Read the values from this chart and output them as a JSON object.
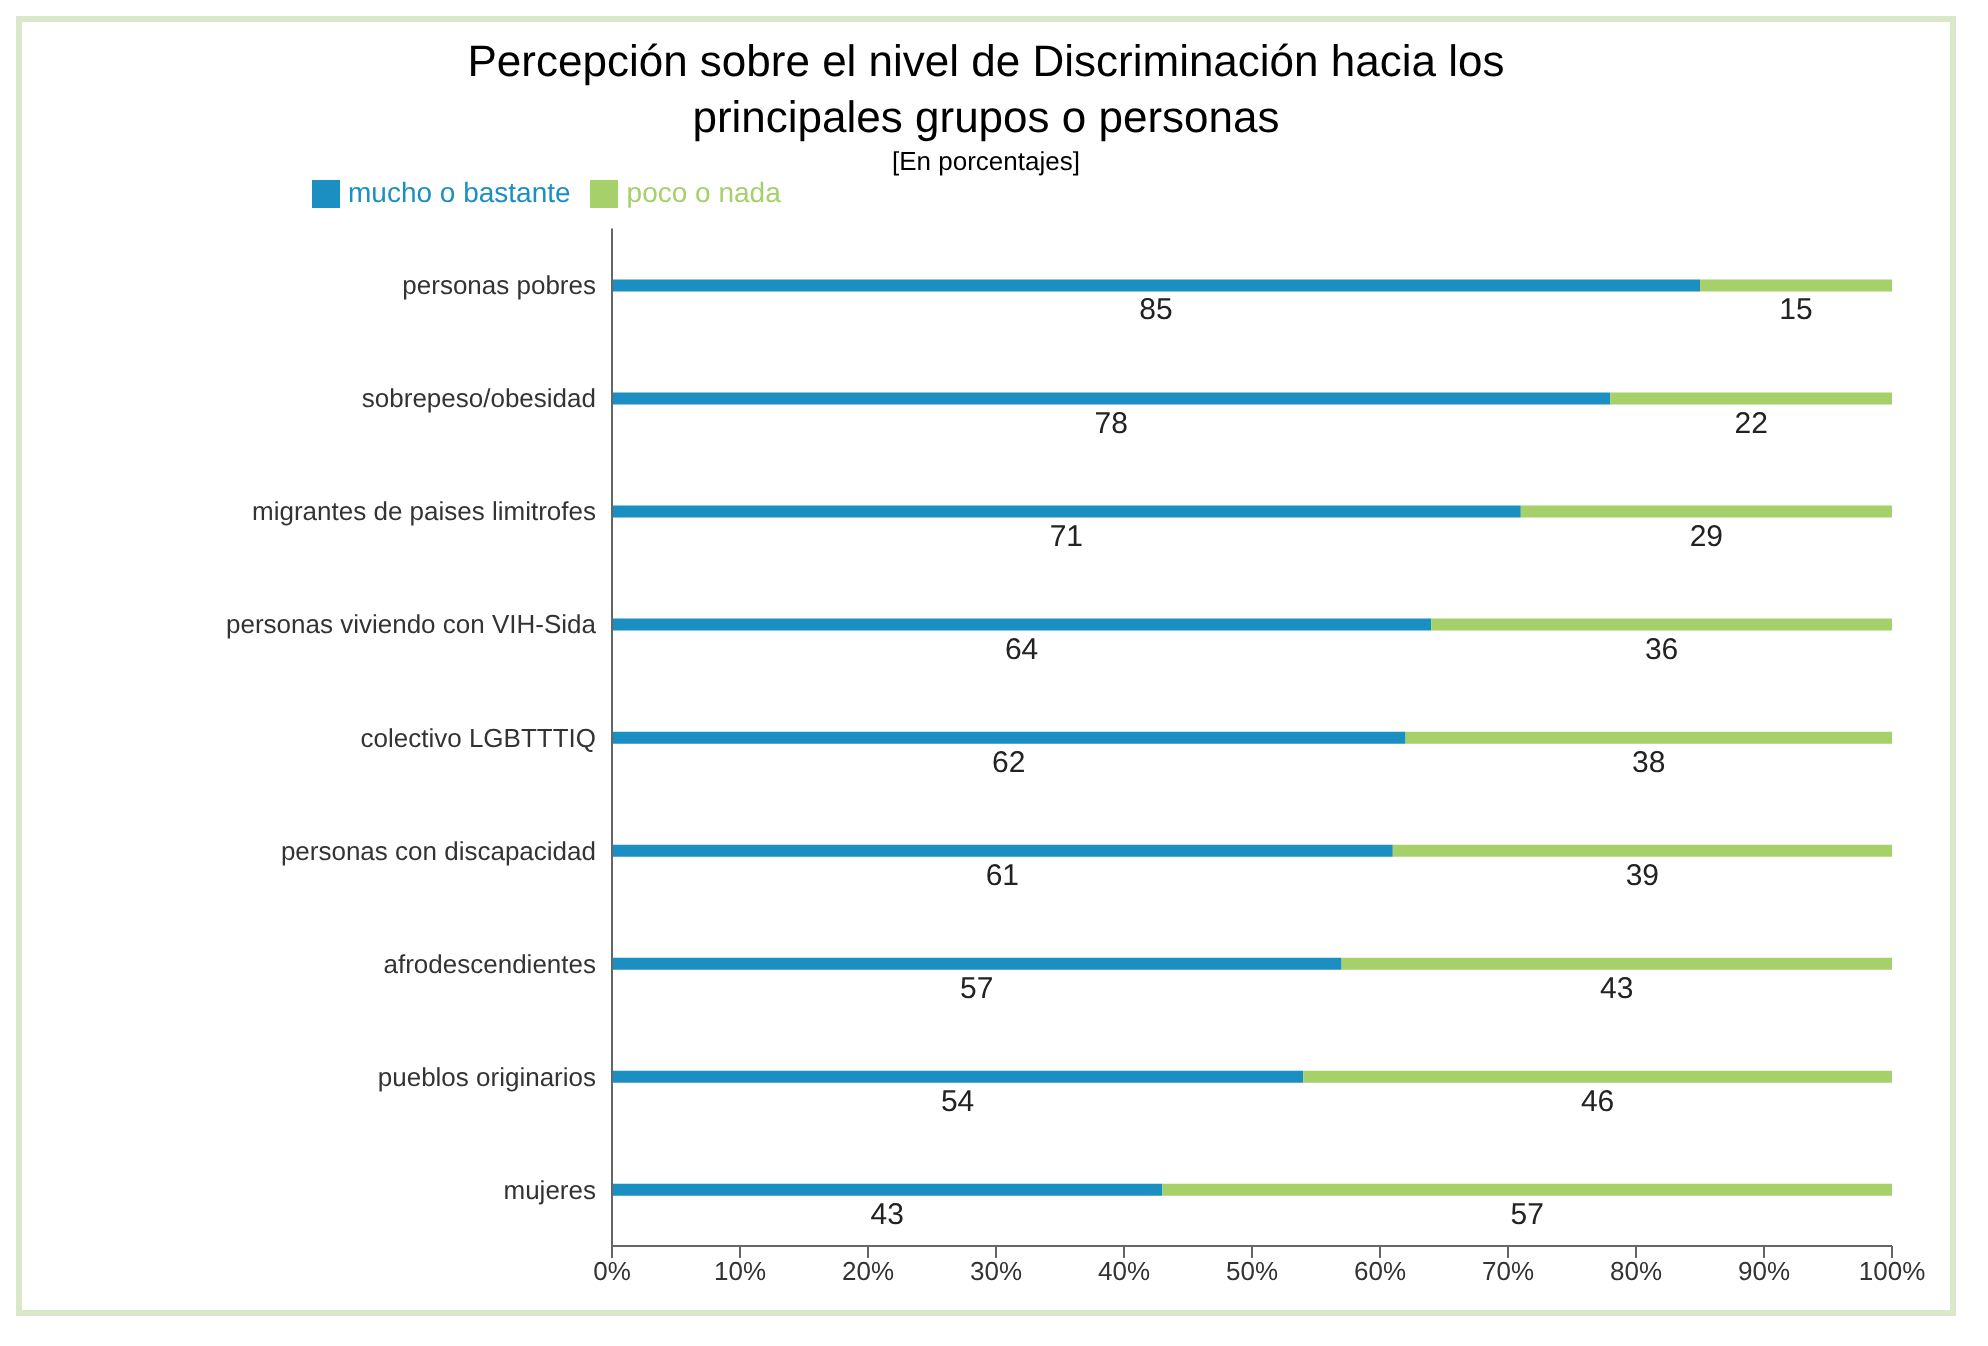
{
  "chart_data": {
    "type": "bar",
    "orientation": "horizontal",
    "stacked": true,
    "title": "Percepción sobre el nivel de Discriminación hacia los principales grupos o personas",
    "subtitle": "[En porcentajes]",
    "categories": [
      "personas pobres",
      "sobrepeso/obesidad",
      "migrantes de paises limitrofes",
      "personas viviendo con VIH-Sida",
      "colectivo LGBTTTIQ",
      "personas con discapacidad",
      "afrodescendientes",
      "pueblos originarios",
      "mujeres"
    ],
    "series": [
      {
        "name": "mucho o bastante",
        "color": "#1b8fc2",
        "values": [
          85,
          78,
          71,
          64,
          62,
          61,
          57,
          54,
          43
        ]
      },
      {
        "name": "poco o nada",
        "color": "#a6d06a",
        "values": [
          15,
          22,
          29,
          36,
          38,
          39,
          43,
          46,
          57
        ]
      }
    ],
    "xlim": [
      0,
      100
    ],
    "xticks": [
      {
        "value": 0,
        "label": "0%"
      },
      {
        "value": 10,
        "label": "10%"
      },
      {
        "value": 20,
        "label": "20%"
      },
      {
        "value": 30,
        "label": "30%"
      },
      {
        "value": 40,
        "label": "40%"
      },
      {
        "value": 50,
        "label": "50%"
      },
      {
        "value": 60,
        "label": "60%"
      },
      {
        "value": 70,
        "label": "70%"
      },
      {
        "value": 80,
        "label": "80%"
      },
      {
        "value": 90,
        "label": "90%"
      },
      {
        "value": 100,
        "label": "100%"
      }
    ],
    "data_labels": true,
    "legend": "top",
    "grid": false
  }
}
